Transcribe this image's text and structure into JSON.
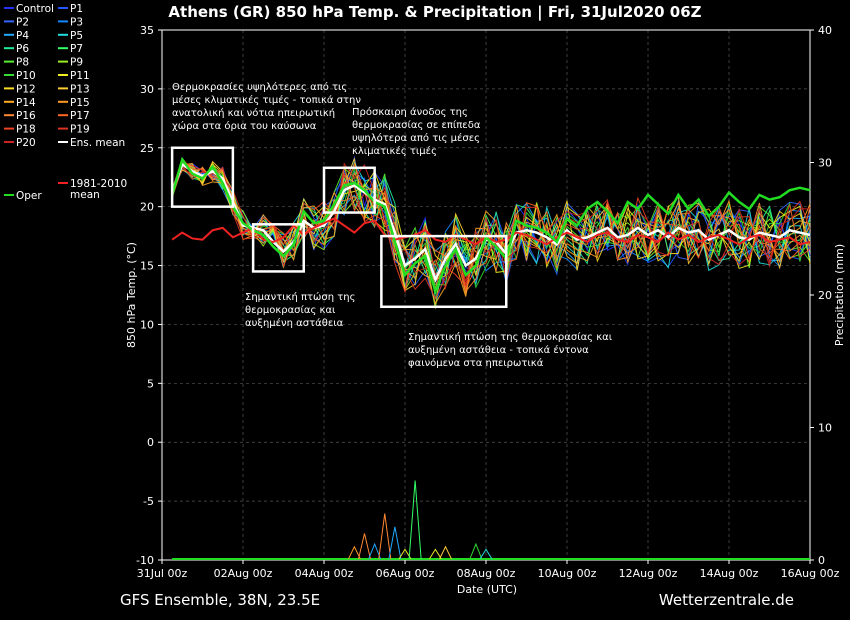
{
  "chart_data": {
    "type": "line",
    "title": "Athens  (GR)  850 hPa Temp. & Precipitation | Fri, 31Jul2020 06Z",
    "footer_left": "GFS Ensemble, 38N, 23.5E",
    "footer_right": "Wetterzentrale.de",
    "xlabel": "Date (UTC)",
    "ylabel": "850 hPa Temp. (°C)",
    "ylabel_right": "Precipitation (mm)",
    "x_ticks": [
      "31Jul 00z",
      "02Aug 00z",
      "04Aug 00z",
      "06Aug 00z",
      "08Aug 00z",
      "10Aug 00z",
      "12Aug 00z",
      "14Aug 00z",
      "16Aug 00z"
    ],
    "xlim_hours": [
      0,
      384
    ],
    "ylim": [
      -10,
      35
    ],
    "y_ticks": [
      -10,
      -5,
      0,
      5,
      10,
      15,
      20,
      25,
      30,
      35
    ],
    "ylim_right": [
      0,
      40
    ],
    "y_ticks_right": [
      0,
      10,
      20,
      30,
      40
    ],
    "grid": true,
    "legend_placement": "left outside",
    "colors": {
      "Control": "#2233ff",
      "P1": "#2255ff",
      "P2": "#3366ff",
      "P3": "#1188ff",
      "P4": "#22aaff",
      "P5": "#22dddd",
      "P6": "#22ee99",
      "P7": "#33ff66",
      "P8": "#55ee33",
      "P9": "#99ee22",
      "P10": "#33dd33",
      "P11": "#eeee22",
      "P12": "#ffdd22",
      "P13": "#ffcc33",
      "P14": "#ffaa22",
      "P15": "#ff9922",
      "P16": "#ff8833",
      "P17": "#ff6622",
      "P18": "#ee4422",
      "P19": "#dd3322",
      "P20": "#cc2222",
      "Ens. mean": "#ffffff",
      "1981-2010 mean": "#ee2222",
      "Oper": "#22dd22"
    },
    "legend": [
      {
        "name": "Control",
        "color": "#2233ff"
      },
      {
        "name": "P1",
        "color": "#2255ff"
      },
      {
        "name": "P2",
        "color": "#3366ff"
      },
      {
        "name": "P3",
        "color": "#1188ff"
      },
      {
        "name": "P4",
        "color": "#22aaff"
      },
      {
        "name": "P5",
        "color": "#22dddd"
      },
      {
        "name": "P6",
        "color": "#22ee99"
      },
      {
        "name": "P7",
        "color": "#33ff66"
      },
      {
        "name": "P8",
        "color": "#55ee33"
      },
      {
        "name": "P9",
        "color": "#99ee22"
      },
      {
        "name": "P10",
        "color": "#33dd33"
      },
      {
        "name": "P11",
        "color": "#eeee22"
      },
      {
        "name": "P12",
        "color": "#ffdd22"
      },
      {
        "name": "P13",
        "color": "#ffcc33"
      },
      {
        "name": "P14",
        "color": "#ffaa22"
      },
      {
        "name": "P15",
        "color": "#ff9922"
      },
      {
        "name": "P16",
        "color": "#ff8833"
      },
      {
        "name": "P17",
        "color": "#ff6622"
      },
      {
        "name": "P18",
        "color": "#ee4422"
      },
      {
        "name": "P19",
        "color": "#dd3322"
      },
      {
        "name": "P20",
        "color": "#cc2222"
      },
      {
        "name": "Ens. mean",
        "color": "#ffffff"
      },
      {
        "name": "1981-2010\nmean",
        "color": "#ee2222"
      },
      {
        "name": "Oper",
        "color": "#22dd22"
      }
    ],
    "series": [
      {
        "name": "Ens. mean",
        "x": [
          6,
          12,
          18,
          24,
          30,
          36,
          42,
          48,
          54,
          60,
          66,
          72,
          78,
          84,
          90,
          96,
          102,
          108,
          114,
          120,
          126,
          132,
          138,
          144,
          150,
          156,
          162,
          168,
          174,
          180,
          186,
          192,
          198,
          204,
          210,
          216,
          222,
          228,
          234,
          240,
          246,
          252,
          258,
          264,
          270,
          276,
          282,
          288,
          294,
          300,
          306,
          312,
          318,
          324,
          330,
          336,
          342,
          348,
          354,
          360,
          366,
          372,
          378,
          384
        ],
        "y": [
          21.2,
          23.6,
          23.0,
          22.6,
          23.0,
          22.4,
          20.4,
          18.4,
          18.2,
          18.0,
          17.0,
          16.2,
          17.0,
          18.8,
          18.2,
          18.4,
          19.6,
          21.4,
          21.8,
          21.2,
          20.6,
          20.2,
          17.8,
          15.0,
          15.6,
          16.4,
          13.8,
          15.6,
          16.8,
          15.0,
          15.6,
          17.2,
          17.0,
          16.0,
          17.8,
          18.0,
          17.8,
          17.4,
          16.8,
          18.0,
          17.2,
          17.4,
          17.8,
          18.2,
          17.4,
          17.6,
          18.2,
          17.6,
          18.0,
          17.4,
          18.2,
          17.8,
          18.0,
          17.2,
          17.6,
          18.0,
          17.4,
          17.2,
          17.8,
          17.6,
          17.4,
          18.0,
          17.8,
          17.6
        ]
      },
      {
        "name": "1981-2010 mean",
        "x": [
          6,
          12,
          18,
          24,
          30,
          36,
          42,
          48,
          54,
          60,
          66,
          72,
          78,
          84,
          90,
          96,
          102,
          108,
          114,
          120,
          126,
          132,
          138,
          144,
          150,
          156,
          162,
          168,
          174,
          180,
          186,
          192,
          198,
          204,
          210,
          216,
          222,
          228,
          234,
          240,
          246,
          252,
          258,
          264,
          270,
          276,
          282,
          288,
          294,
          300,
          306,
          312,
          318,
          324,
          330,
          336,
          342,
          348,
          354,
          360,
          366,
          372,
          378,
          384
        ],
        "y": [
          17.2,
          17.8,
          17.3,
          17.2,
          18.0,
          18.2,
          17.4,
          17.8,
          18.2,
          17.2,
          17.0,
          17.4,
          18.4,
          17.6,
          18.2,
          18.6,
          19.0,
          18.4,
          17.8,
          18.6,
          18.8,
          17.6,
          17.2,
          17.4,
          17.6,
          18.0,
          17.2,
          17.0,
          17.6,
          17.2,
          16.8,
          17.4,
          17.0,
          17.2,
          17.8,
          17.6,
          17.2,
          16.8,
          17.4,
          17.8,
          17.4,
          17.0,
          17.6,
          17.8,
          17.2,
          17.0,
          17.6,
          17.4,
          17.0,
          17.8,
          17.2,
          17.6,
          17.0,
          17.4,
          17.6,
          17.2,
          16.8,
          17.4,
          17.6,
          17.0,
          17.2,
          17.4,
          16.8,
          17.0
        ]
      },
      {
        "name": "Oper",
        "x": [
          6,
          12,
          18,
          24,
          30,
          36,
          42,
          48,
          54,
          60,
          66,
          72,
          78,
          84,
          90,
          96,
          102,
          108,
          114,
          120,
          126,
          132,
          138,
          144,
          150,
          156,
          162,
          168,
          174,
          180,
          186,
          192,
          198,
          204,
          210,
          216,
          222,
          228,
          234,
          240,
          246,
          252,
          258,
          264,
          270,
          276,
          282,
          288,
          294,
          300,
          306,
          312,
          318,
          324,
          330,
          336,
          342,
          348,
          354,
          360,
          366,
          372,
          378,
          384
        ],
        "y": [
          21.0,
          24.0,
          22.8,
          22.4,
          23.4,
          22.0,
          20.0,
          18.6,
          18.0,
          17.6,
          16.6,
          15.8,
          16.8,
          19.6,
          18.6,
          18.8,
          20.2,
          21.8,
          22.0,
          21.4,
          20.4,
          20.0,
          17.0,
          14.2,
          15.2,
          15.8,
          12.8,
          15.0,
          16.4,
          14.2,
          15.0,
          17.4,
          16.6,
          15.6,
          18.8,
          18.4,
          18.2,
          17.8,
          17.0,
          19.0,
          18.4,
          19.8,
          20.4,
          19.6,
          18.6,
          20.4,
          19.8,
          21.0,
          20.2,
          19.4,
          21.0,
          19.8,
          20.6,
          19.2,
          20.0,
          21.2,
          20.4,
          19.8,
          21.0,
          20.6,
          20.8,
          21.4,
          21.6,
          21.4
        ]
      }
    ],
    "members_spread": {
      "min_by_day": [
        21,
        15.5,
        17,
        12,
        14.5,
        15,
        13,
        12.5
      ],
      "max_by_day": [
        24,
        19,
        22.5,
        17.5,
        19,
        20.5,
        21,
        23
      ]
    },
    "precip_spikes": [
      {
        "x": 114,
        "mm": 1.0,
        "color": "#ff9922"
      },
      {
        "x": 120,
        "mm": 2.0,
        "color": "#ff8833"
      },
      {
        "x": 126,
        "mm": 1.2,
        "color": "#22aaff"
      },
      {
        "x": 132,
        "mm": 3.5,
        "color": "#ff8833"
      },
      {
        "x": 138,
        "mm": 2.5,
        "color": "#22aaff"
      },
      {
        "x": 144,
        "mm": 0.8,
        "color": "#eeee22"
      },
      {
        "x": 150,
        "mm": 6.0,
        "color": "#33ff66"
      },
      {
        "x": 162,
        "mm": 0.8,
        "color": "#eeee22"
      },
      {
        "x": 168,
        "mm": 1.0,
        "color": "#ffcc33"
      },
      {
        "x": 186,
        "mm": 1.2,
        "color": "#33dd33"
      },
      {
        "x": 192,
        "mm": 0.8,
        "color": "#22dddd"
      }
    ],
    "annotations": [
      {
        "text": "Θερμοκρασίες υψηλότερες από τις\nμέσες κλιματικές τιμές - τοπικά στην\nανατολική και νότια ηπειρωτική\nχώρα στα όρια του καύσωνα",
        "box_hours": [
          6,
          42
        ],
        "box_y": [
          20,
          25
        ]
      },
      {
        "text": "Σημαντική πτώση της\nθερμοκρασίας και\nαυξημένη αστάθεια",
        "box_hours": [
          54,
          84
        ],
        "box_y": [
          14.5,
          18.5
        ]
      },
      {
        "text": "Πρόσκαιρη άνοδος της\nθερμοκρασίας σε επίπεδα\nυψηλότερα από τις μέσες\nκλιματικές τιμές",
        "box_hours": [
          96,
          126
        ],
        "box_y": [
          19.5,
          23.3
        ]
      },
      {
        "text": "Σημαντική πτώση της θερμοκρασίας και\nαυξημένη αστάθεια - τοπικά έντονα\nφαινόμενα στα ηπειρωτικά",
        "box_hours": [
          130,
          204
        ],
        "box_y": [
          11.5,
          17.5
        ]
      }
    ]
  }
}
